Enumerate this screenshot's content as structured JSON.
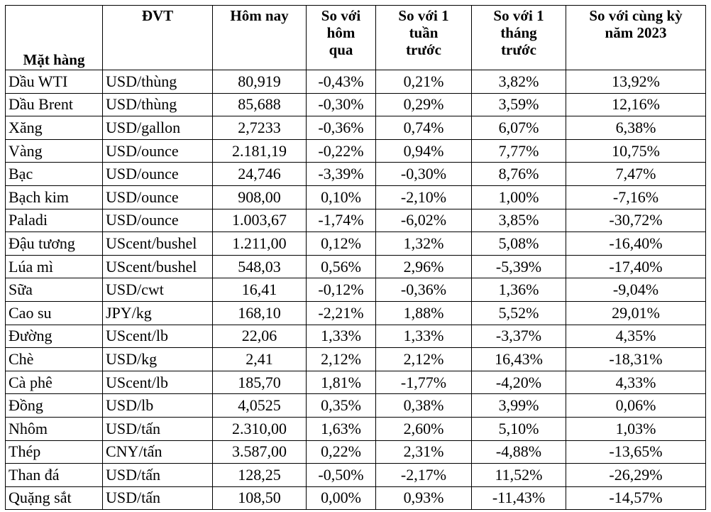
{
  "table": {
    "header": [
      [
        "Mặt hàng"
      ],
      [
        "ĐVT"
      ],
      [
        "Hôm nay"
      ],
      [
        "So với",
        "hôm",
        "qua"
      ],
      [
        "So với 1",
        "tuần",
        "trước"
      ],
      [
        "So với 1",
        "tháng",
        "trước"
      ],
      [
        "So với cùng kỳ",
        "năm 2023"
      ]
    ],
    "rows": [
      [
        "Dầu WTI",
        "USD/thùng",
        "80,919",
        "-0,43%",
        "0,21%",
        "3,82%",
        "13,92%"
      ],
      [
        "Dầu Brent",
        "USD/thùng",
        "85,688",
        "-0,30%",
        "0,29%",
        "3,59%",
        "12,16%"
      ],
      [
        "Xăng",
        "USD/gallon",
        "2,7233",
        "-0,36%",
        "0,74%",
        "6,07%",
        "6,38%"
      ],
      [
        "Vàng",
        "USD/ounce",
        "2.181,19",
        "-0,22%",
        "0,94%",
        "7,77%",
        "10,75%"
      ],
      [
        "Bạc",
        "USD/ounce",
        "24,746",
        "-3,39%",
        "-0,30%",
        "8,76%",
        "7,47%"
      ],
      [
        "Bạch kim",
        "USD/ounce",
        "908,00",
        "0,10%",
        "-2,10%",
        "1,00%",
        "-7,16%"
      ],
      [
        "Paladi",
        "USD/ounce",
        "1.003,67",
        "-1,74%",
        "-6,02%",
        "3,85%",
        "-30,72%"
      ],
      [
        "Đậu tương",
        "UScent/bushel",
        "1.211,00",
        "0,12%",
        "1,32%",
        "5,08%",
        "-16,40%"
      ],
      [
        "Lúa mì",
        "UScent/bushel",
        "548,03",
        "0,56%",
        "2,96%",
        "-5,39%",
        "-17,40%"
      ],
      [
        "Sữa",
        "USD/cwt",
        "16,41",
        "-0,12%",
        "-0,36%",
        "1,36%",
        "-9,04%"
      ],
      [
        "Cao su",
        "JPY/kg",
        "168,10",
        "-2,21%",
        "1,88%",
        "5,52%",
        "29,01%"
      ],
      [
        "Đường",
        "UScent/lb",
        "22,06",
        "1,33%",
        "1,33%",
        "-3,37%",
        "4,35%"
      ],
      [
        "Chè",
        "USD/kg",
        "2,41",
        "2,12%",
        "2,12%",
        "16,43%",
        "-18,31%"
      ],
      [
        "Cà phê",
        "UScent/lb",
        "185,70",
        "1,81%",
        "-1,77%",
        "-4,20%",
        "4,33%"
      ],
      [
        "Đồng",
        "USD/lb",
        "4,0525",
        "0,35%",
        "0,38%",
        "3,99%",
        "0,06%"
      ],
      [
        "Nhôm",
        "USD/tấn",
        "2.310,00",
        "1,63%",
        "2,60%",
        "5,10%",
        "1,03%"
      ],
      [
        "Thép",
        "CNY/tấn",
        "3.587,00",
        "0,22%",
        "2,31%",
        "-4,88%",
        "-13,65%"
      ],
      [
        "Than đá",
        "USD/tấn",
        "128,25",
        "-0,50%",
        "-2,17%",
        "11,52%",
        "-26,29%"
      ],
      [
        "Quặng sắt",
        "USD/tấn",
        "108,50",
        "0,00%",
        "0,93%",
        "-11,43%",
        "-14,57%"
      ]
    ]
  }
}
